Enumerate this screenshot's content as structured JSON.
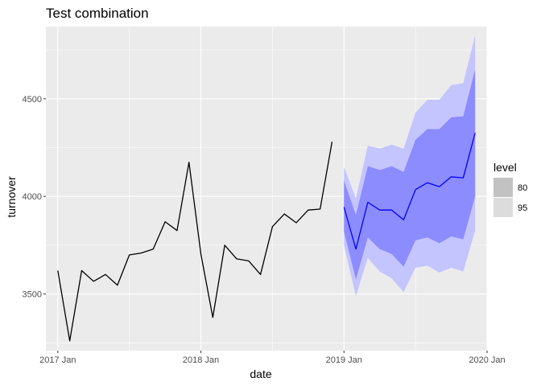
{
  "chart_data": {
    "type": "line",
    "title": "Test combination",
    "xlabel": "date",
    "ylabel": "turnover",
    "x_ticks": [
      {
        "label": "2017 Jan",
        "month": 0
      },
      {
        "label": "2018 Jan",
        "month": 12
      },
      {
        "label": "2019 Jan",
        "month": 24
      },
      {
        "label": "2020 Jan",
        "month": 36
      }
    ],
    "y_ticks": [
      3500,
      4000,
      4500
    ],
    "xlim": [
      "2016-12",
      "2020-01"
    ],
    "ylim": [
      3210,
      4870
    ],
    "grid": true,
    "legend": {
      "title": "level",
      "position": "right",
      "entries": [
        {
          "label": "80",
          "color": "#c2c2c2"
        },
        {
          "label": "95",
          "color": "#dcdcdc"
        }
      ]
    },
    "history": {
      "color": "#000000",
      "start": "2017-01",
      "values": [
        3620,
        3260,
        3620,
        3565,
        3600,
        3545,
        3700,
        3710,
        3730,
        3870,
        3825,
        4175,
        3705,
        3380,
        3750,
        3680,
        3670,
        3600,
        3845,
        3910,
        3865,
        3930,
        3935,
        4280
      ]
    },
    "forecast": {
      "color": "#0000ff",
      "interval_80_color": "#8c8cff",
      "interval_95_color": "#c4c4ff",
      "start": "2019-01",
      "mean": [
        3945,
        3730,
        3970,
        3930,
        3930,
        3880,
        4035,
        4070,
        4050,
        4100,
        4095,
        4325
      ],
      "lo80": [
        3820,
        3575,
        3790,
        3730,
        3705,
        3640,
        3775,
        3790,
        3760,
        3795,
        3780,
        4000
      ],
      "hi80": [
        4080,
        3905,
        4155,
        4135,
        4155,
        4125,
        4290,
        4345,
        4345,
        4405,
        4410,
        4650
      ],
      "lo95": [
        3750,
        3490,
        3685,
        3615,
        3580,
        3510,
        3635,
        3645,
        3610,
        3635,
        3615,
        3825
      ],
      "hi95": [
        4150,
        3990,
        4260,
        4245,
        4265,
        4245,
        4430,
        4495,
        4495,
        4570,
        4580,
        4825
      ]
    }
  }
}
